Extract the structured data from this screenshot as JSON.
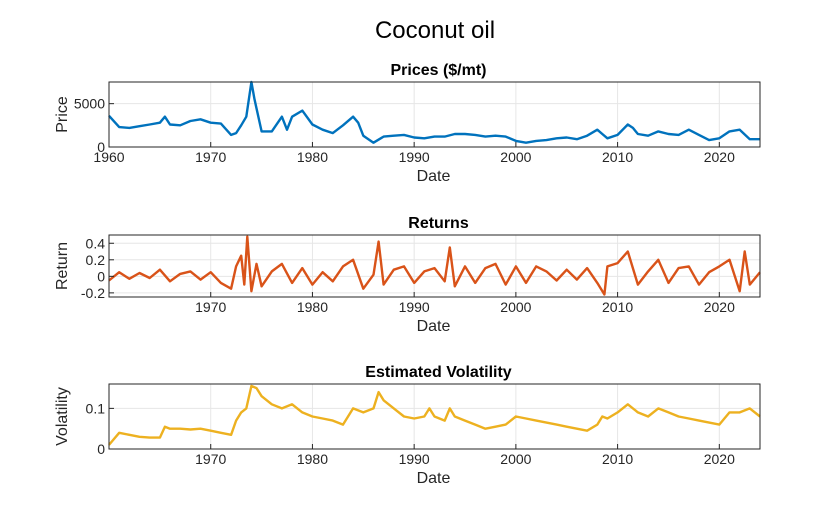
{
  "figure_title": "Coconut oil",
  "chart_data": [
    {
      "type": "line",
      "title": "Prices ($/mt)",
      "xlabel": "Date",
      "ylabel": "Price",
      "xlim": [
        1960,
        2024
      ],
      "ylim": [
        0,
        7500
      ],
      "xticks": [
        1960,
        1970,
        1980,
        1990,
        2000,
        2010,
        2020
      ],
      "yticks": [
        0,
        5000
      ],
      "grid": true,
      "color": "#0072BD",
      "series": [
        {
          "x": [
            1960,
            1961,
            1962,
            1963,
            1964,
            1965,
            1965.5,
            1966,
            1967,
            1968,
            1969,
            1970,
            1971,
            1972,
            1972.5,
            1973,
            1973.5,
            1974,
            1974.3,
            1975,
            1976,
            1977,
            1977.5,
            1978,
            1979,
            1980,
            1981,
            1982,
            1983,
            1984,
            1984.5,
            1985,
            1986,
            1987,
            1988,
            1989,
            1990,
            1991,
            1992,
            1993,
            1994,
            1995,
            1996,
            1997,
            1998,
            1999,
            2000,
            2001,
            2002,
            2003,
            2004,
            2005,
            2006,
            2007,
            2008,
            2008.5,
            2009,
            2010,
            2011,
            2011.5,
            2012,
            2013,
            2014,
            2015,
            2016,
            2017,
            2018,
            2019,
            2020,
            2021,
            2022,
            2023,
            2024
          ],
          "y": [
            3600,
            2300,
            2200,
            2400,
            2600,
            2800,
            3500,
            2600,
            2500,
            3000,
            3200,
            2800,
            2700,
            1400,
            1600,
            2500,
            3500,
            7500,
            5500,
            1800,
            1800,
            3500,
            2000,
            3500,
            4200,
            2600,
            2000,
            1600,
            2500,
            3500,
            2800,
            1300,
            500,
            1200,
            1300,
            1400,
            1100,
            1000,
            1200,
            1200,
            1500,
            1500,
            1400,
            1200,
            1300,
            1200,
            700,
            500,
            700,
            800,
            1000,
            1100,
            900,
            1300,
            2000,
            1500,
            1000,
            1400,
            2600,
            2200,
            1500,
            1300,
            1800,
            1500,
            1400,
            2000,
            1400,
            800,
            1000,
            1800,
            2000,
            900,
            900
          ]
        }
      ]
    },
    {
      "type": "line",
      "title": "Returns",
      "xlabel": "Date",
      "ylabel": "Return",
      "xlim": [
        1960,
        2024
      ],
      "ylim": [
        -0.25,
        0.5
      ],
      "xticks": [
        1970,
        1980,
        1990,
        2000,
        2010,
        2020
      ],
      "yticks": [
        -0.2,
        0,
        0.2,
        0.4
      ],
      "grid": true,
      "color": "#D95319",
      "series": [
        {
          "x": [
            1960,
            1961,
            1962,
            1963,
            1964,
            1965,
            1966,
            1967,
            1968,
            1969,
            1970,
            1971,
            1972,
            1972.5,
            1973,
            1973.3,
            1973.6,
            1974,
            1974.5,
            1975,
            1976,
            1977,
            1978,
            1979,
            1980,
            1981,
            1982,
            1983,
            1984,
            1985,
            1986,
            1986.5,
            1987,
            1988,
            1989,
            1990,
            1991,
            1992,
            1993,
            1993.5,
            1994,
            1995,
            1996,
            1997,
            1998,
            1999,
            2000,
            2001,
            2002,
            2003,
            2004,
            2005,
            2006,
            2007,
            2008,
            2008.7,
            2009,
            2010,
            2011,
            2012,
            2013,
            2014,
            2015,
            2016,
            2017,
            2018,
            2019,
            2020,
            2021,
            2022,
            2022.5,
            2023,
            2024
          ],
          "y": [
            -0.05,
            0.05,
            -0.03,
            0.04,
            -0.02,
            0.08,
            -0.06,
            0.03,
            0.06,
            -0.04,
            0.05,
            -0.08,
            -0.15,
            0.12,
            0.25,
            -0.1,
            0.48,
            -0.18,
            0.15,
            -0.12,
            0.06,
            0.15,
            -0.08,
            0.1,
            -0.1,
            0.05,
            -0.06,
            0.12,
            0.2,
            -0.15,
            0.02,
            0.42,
            -0.1,
            0.08,
            0.12,
            -0.08,
            0.06,
            0.1,
            -0.06,
            0.35,
            -0.12,
            0.12,
            -0.08,
            0.1,
            0.15,
            -0.1,
            0.12,
            -0.08,
            0.12,
            0.06,
            -0.05,
            0.08,
            -0.04,
            0.1,
            -0.08,
            -0.22,
            0.12,
            0.16,
            0.3,
            -0.1,
            0.06,
            0.2,
            -0.08,
            0.1,
            0.12,
            -0.1,
            0.05,
            0.12,
            0.2,
            -0.18,
            0.3,
            -0.1,
            0.05
          ]
        }
      ]
    },
    {
      "type": "line",
      "title": "Estimated Volatility",
      "xlabel": "Date",
      "ylabel": "Volatility",
      "xlim": [
        1960,
        2024
      ],
      "ylim": [
        0,
        0.16
      ],
      "xticks": [
        1970,
        1980,
        1990,
        2000,
        2010,
        2020
      ],
      "yticks": [
        0,
        0.1
      ],
      "grid": true,
      "color": "#EDB120",
      "series": [
        {
          "x": [
            1960,
            1961,
            1962,
            1963,
            1964,
            1965,
            1965.5,
            1966,
            1967,
            1968,
            1969,
            1970,
            1971,
            1972,
            1972.5,
            1973,
            1973.5,
            1974,
            1974.5,
            1975,
            1976,
            1977,
            1978,
            1979,
            1980,
            1981,
            1982,
            1983,
            1984,
            1985,
            1986,
            1986.5,
            1987,
            1988,
            1989,
            1990,
            1991,
            1991.5,
            1992,
            1993,
            1993.5,
            1994,
            1995,
            1996,
            1997,
            1998,
            1999,
            2000,
            2001,
            2002,
            2003,
            2004,
            2005,
            2006,
            2007,
            2008,
            2008.5,
            2009,
            2010,
            2011,
            2012,
            2013,
            2014,
            2015,
            2016,
            2017,
            2018,
            2019,
            2020,
            2021,
            2022,
            2023,
            2024
          ],
          "y": [
            0.01,
            0.04,
            0.035,
            0.03,
            0.028,
            0.028,
            0.055,
            0.05,
            0.05,
            0.048,
            0.05,
            0.045,
            0.04,
            0.035,
            0.07,
            0.09,
            0.1,
            0.155,
            0.15,
            0.13,
            0.11,
            0.1,
            0.11,
            0.09,
            0.08,
            0.075,
            0.07,
            0.06,
            0.1,
            0.09,
            0.1,
            0.14,
            0.12,
            0.1,
            0.08,
            0.075,
            0.08,
            0.1,
            0.08,
            0.07,
            0.1,
            0.08,
            0.07,
            0.06,
            0.05,
            0.055,
            0.06,
            0.08,
            0.075,
            0.07,
            0.065,
            0.06,
            0.055,
            0.05,
            0.045,
            0.06,
            0.08,
            0.075,
            0.09,
            0.11,
            0.09,
            0.08,
            0.1,
            0.09,
            0.08,
            0.075,
            0.07,
            0.065,
            0.06,
            0.09,
            0.09,
            0.1,
            0.08
          ]
        }
      ]
    }
  ]
}
